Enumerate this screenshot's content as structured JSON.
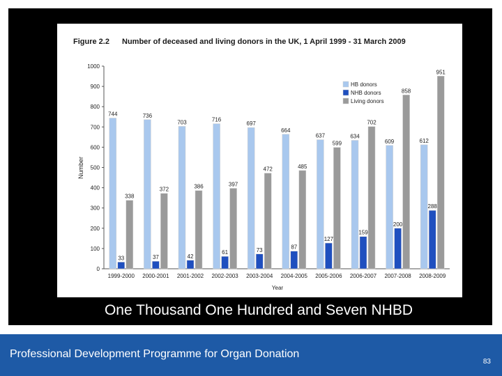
{
  "caption": "One Thousand One Hundred and Seven NHBD",
  "footer": {
    "title": "Professional Development Programme for Organ Donation",
    "page_number": "83"
  },
  "colors": {
    "hb": "#a9c8ee",
    "nhb": "#1f4fbf",
    "living": "#9a9a9a",
    "footer": "#1e5aa6"
  },
  "chart_data": {
    "type": "bar",
    "figure_label": "Figure 2.2",
    "title": "Number of deceased and living donors in the UK, 1 April 1999 - 31 March 2009",
    "xlabel": "Year",
    "ylabel": "Number",
    "ylim": [
      0,
      1000
    ],
    "yticks": [
      0,
      100,
      200,
      300,
      400,
      500,
      600,
      700,
      800,
      900,
      1000
    ],
    "grid": false,
    "legend_position": "top-right",
    "categories": [
      "1999-2000",
      "2000-2001",
      "2001-2002",
      "2002-2003",
      "2003-2004",
      "2004-2005",
      "2005-2006",
      "2006-2007",
      "2007-2008",
      "2008-2009"
    ],
    "series": [
      {
        "name": "HB donors",
        "values": [
          744,
          736,
          703,
          716,
          697,
          664,
          637,
          634,
          609,
          612
        ]
      },
      {
        "name": "NHB donors",
        "values": [
          33,
          37,
          42,
          61,
          73,
          87,
          127,
          159,
          200,
          288
        ]
      },
      {
        "name": "Living donors",
        "values": [
          338,
          372,
          386,
          397,
          472,
          485,
          599,
          702,
          858,
          951
        ]
      }
    ]
  }
}
